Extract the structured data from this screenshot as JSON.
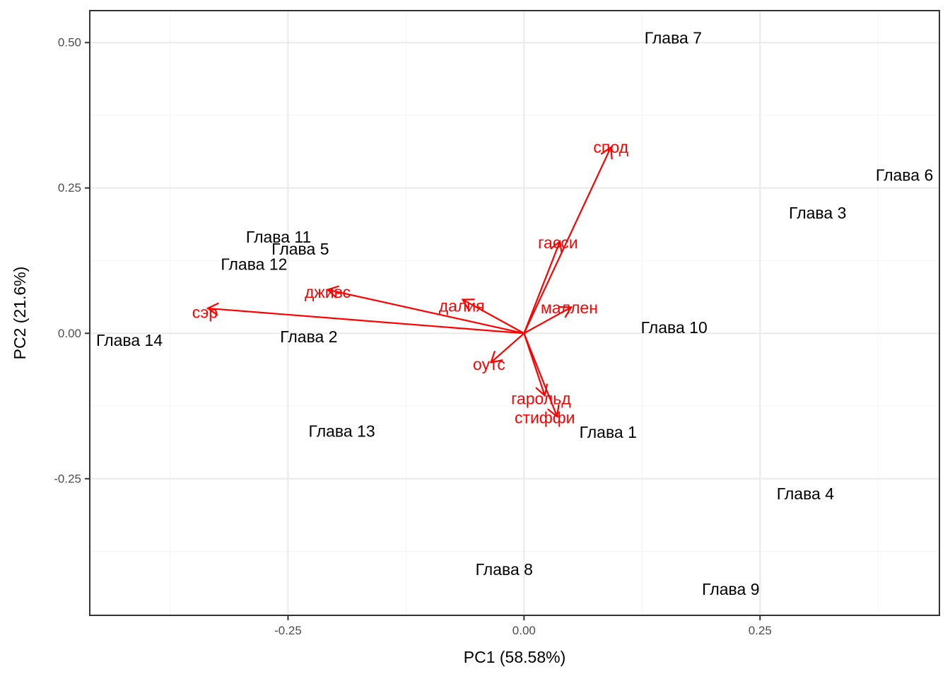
{
  "chart_data": {
    "type": "scatter",
    "title": "",
    "xlabel": "PC1 (58.58%)",
    "ylabel": "PC2 (21.6%)",
    "xlim": [
      -0.46,
      0.44
    ],
    "ylim": [
      -0.485,
      0.555
    ],
    "x_ticks": [
      -0.25,
      0.0,
      0.25
    ],
    "x_tick_labels": [
      "-0.25",
      "0.00",
      "0.25"
    ],
    "y_ticks": [
      -0.25,
      0.0,
      0.25,
      0.5
    ],
    "y_tick_labels": [
      "-0.25",
      "0.00",
      "0.25",
      "0.50"
    ],
    "grid": true,
    "observations": [
      {
        "label": "Глава 7",
        "x": 0.158,
        "y": 0.508
      },
      {
        "label": "Глава 6",
        "x": 0.403,
        "y": 0.272
      },
      {
        "label": "Глава 3",
        "x": 0.311,
        "y": 0.207
      },
      {
        "label": "Глава 11",
        "x": -0.26,
        "y": 0.166
      },
      {
        "label": "Глава 5",
        "x": -0.237,
        "y": 0.145
      },
      {
        "label": "Глава 12",
        "x": -0.286,
        "y": 0.119
      },
      {
        "label": "Глава 14",
        "x": -0.418,
        "y": -0.012
      },
      {
        "label": "Глава 2",
        "x": -0.228,
        "y": -0.006
      },
      {
        "label": "Глава 10",
        "x": 0.159,
        "y": 0.01
      },
      {
        "label": "Глава 13",
        "x": -0.193,
        "y": -0.168
      },
      {
        "label": "Глава 1",
        "x": 0.089,
        "y": -0.17
      },
      {
        "label": "Глава 4",
        "x": 0.298,
        "y": -0.276
      },
      {
        "label": "Глава 8",
        "x": -0.021,
        "y": -0.406
      },
      {
        "label": "Глава 9",
        "x": 0.219,
        "y": -0.44
      }
    ],
    "loadings": [
      {
        "label": "спод",
        "x": 0.092,
        "y": 0.32
      },
      {
        "label": "гасси",
        "x": 0.038,
        "y": 0.158
      },
      {
        "label": "маллен",
        "x": 0.05,
        "y": 0.045
      },
      {
        "label": "далия",
        "x": -0.065,
        "y": 0.058
      },
      {
        "label": "дживс",
        "x": -0.208,
        "y": 0.075
      },
      {
        "label": "сэр",
        "x": -0.335,
        "y": 0.043
      },
      {
        "label": "оутс",
        "x": -0.035,
        "y": -0.05
      },
      {
        "label": "гарольд",
        "x": 0.022,
        "y": -0.107
      },
      {
        "label": "стиффи",
        "x": 0.035,
        "y": -0.143
      }
    ],
    "loading_label_positions": [
      {
        "label": "спод",
        "x": 0.092,
        "y": 0.32
      },
      {
        "label": "гасси",
        "x": 0.036,
        "y": 0.156
      },
      {
        "label": "маллен",
        "x": 0.048,
        "y": 0.044
      },
      {
        "label": "далия",
        "x": -0.066,
        "y": 0.047
      },
      {
        "label": "дживс",
        "x": -0.208,
        "y": 0.071
      },
      {
        "label": "сэр",
        "x": -0.338,
        "y": 0.036
      },
      {
        "label": "оутс",
        "x": -0.037,
        "y": -0.053
      },
      {
        "label": "гарольд",
        "x": 0.018,
        "y": -0.112
      },
      {
        "label": "стиффи",
        "x": 0.022,
        "y": -0.145
      }
    ],
    "colors": {
      "loadings": "#ff0000",
      "observations": "#000000",
      "grid_major": "#ebebeb",
      "grid_minor": "#f5f5f5",
      "panel_border": "#333333",
      "tick_text": "#4d4d4d"
    }
  }
}
